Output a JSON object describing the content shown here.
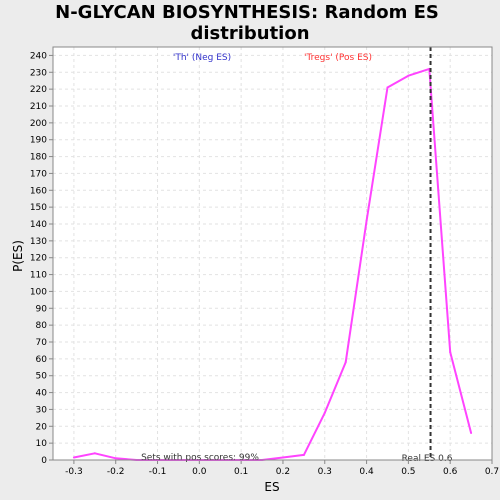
{
  "chart_data": {
    "type": "line",
    "title_line1": "N-GLYCAN BIOSYNTHESIS: Random ES",
    "title_line2": "distribution",
    "xlabel": "ES",
    "ylabel": "P(ES)",
    "xlim": [
      -0.35,
      0.7
    ],
    "ylim": [
      0,
      245
    ],
    "x_ticks": [
      -0.3,
      -0.2,
      -0.1,
      0.0,
      0.1,
      0.2,
      0.3,
      0.4,
      0.5,
      0.6,
      0.7
    ],
    "x_tick_labels": [
      "-0.3",
      "-0.2",
      "-0.1",
      "0.0",
      "0.1",
      "0.2",
      "0.3",
      "0.4",
      "0.5",
      "0.6",
      "0.7"
    ],
    "y_ticks": [
      0,
      10,
      20,
      30,
      40,
      50,
      60,
      70,
      80,
      90,
      100,
      110,
      120,
      130,
      140,
      150,
      160,
      170,
      180,
      190,
      200,
      210,
      220,
      230,
      240
    ],
    "y_tick_labels": [
      "0",
      "10",
      "20",
      "30",
      "40",
      "50",
      "60",
      "70",
      "80",
      "90",
      "100",
      "110",
      "120",
      "130",
      "140",
      "150",
      "160",
      "170",
      "180",
      "190",
      "200",
      "210",
      "220",
      "230",
      "240"
    ],
    "grid": true,
    "series": [
      {
        "color": "#ff44ff",
        "x": [
          -0.3,
          -0.25,
          -0.2,
          -0.15,
          -0.1,
          -0.05,
          0.0,
          0.05,
          0.1,
          0.15,
          0.2,
          0.25,
          0.3,
          0.35,
          0.4,
          0.45,
          0.5,
          0.55,
          0.6,
          0.65
        ],
        "y": [
          1.5,
          4,
          1,
          0,
          0,
          0,
          0,
          0,
          0,
          0,
          1.5,
          3,
          28,
          58,
          142,
          221,
          228,
          232,
          64,
          16
        ]
      }
    ],
    "vline": {
      "x": 0.553,
      "label": "Real ES 0.6",
      "color": "#333333"
    },
    "annotations": {
      "neg_label": "'Th' (Neg ES)",
      "neg_color": "#3333cc",
      "pos_label": "'Tregs' (Pos ES)",
      "pos_color": "#ff3333",
      "pos_scores_label": "Sets with pos scores: 99%"
    }
  }
}
